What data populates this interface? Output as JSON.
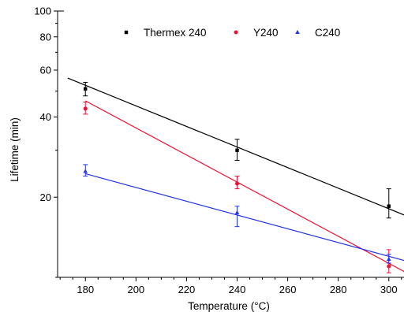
{
  "chart_data": {
    "type": "scatter",
    "title": "",
    "xlabel": "Temperature (°C)",
    "ylabel": "Lifetime (min)",
    "xlim": [
      169,
      306
    ],
    "ylim": [
      10,
      100
    ],
    "y_scale": "log",
    "x_ticks": [
      180,
      200,
      220,
      240,
      260,
      280,
      300
    ],
    "y_ticks": [
      20,
      40,
      60,
      80,
      100
    ],
    "y_tick_labels": [
      "20",
      "40",
      "60",
      "80",
      "100"
    ],
    "grid": false,
    "legend_position": "top",
    "series": [
      {
        "name": "Thermex 240",
        "color": "#000000",
        "marker": "square",
        "x": [
          180,
          240,
          300
        ],
        "y": [
          51,
          30,
          18.5
        ],
        "yerr_low": [
          48,
          27.5,
          16.7
        ],
        "yerr_high": [
          54,
          33,
          21.5
        ],
        "fit": {
          "x": [
            173,
            307
          ],
          "y": [
            56,
            17
          ]
        }
      },
      {
        "name": "Y240",
        "color": "#ee1133",
        "marker": "circle",
        "x": [
          180,
          240,
          300
        ],
        "y": [
          43,
          22.5,
          11
        ],
        "yerr_low": [
          41,
          21.5,
          10.4
        ],
        "yerr_high": [
          45.5,
          24,
          12.7
        ],
        "fit": {
          "x": [
            180,
            307
          ],
          "y": [
            46,
            10.4
          ]
        }
      },
      {
        "name": "C240",
        "color": "#2233ee",
        "marker": "triangle",
        "x": [
          180,
          240,
          300
        ],
        "y": [
          25,
          17.5,
          11.7
        ],
        "yerr_low": [
          24,
          15.5,
          11.3
        ],
        "yerr_high": [
          26.5,
          18.5,
          12.2
        ],
        "fit": {
          "x": [
            180,
            307
          ],
          "y": [
            24.5,
            11.5
          ]
        }
      }
    ]
  }
}
